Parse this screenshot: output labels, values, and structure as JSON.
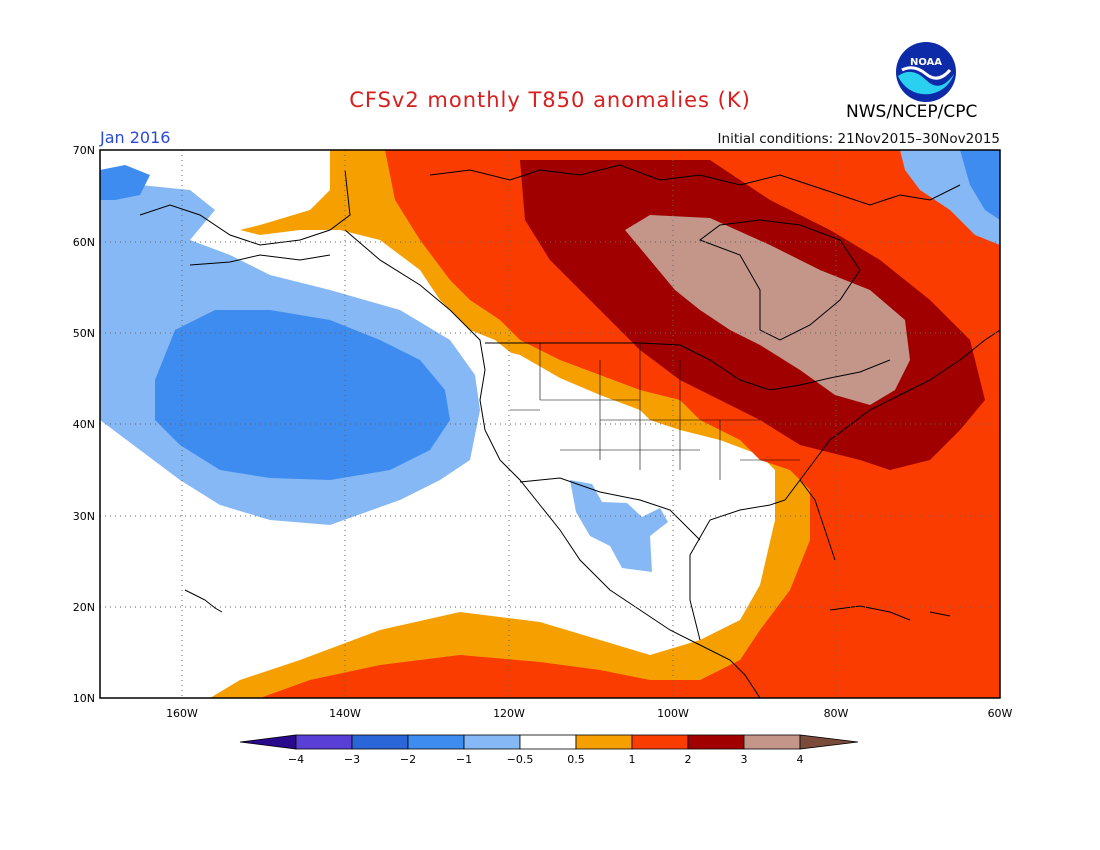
{
  "title": "CFSv2 monthly T850 anomalies (K)",
  "organization": "NWS/NCEP/CPC",
  "logo_text": "NOAA",
  "valid_month": "Jan 2016",
  "initial_conditions": "Initial conditions: 21Nov2015–30Nov2015",
  "lat_labels": [
    "70N",
    "60N",
    "50N",
    "40N",
    "30N",
    "20N",
    "10N"
  ],
  "lon_labels": [
    "160W",
    "140W",
    "120W",
    "100W",
    "80W",
    "60W"
  ],
  "colorbar": {
    "tick_labels": [
      "−4",
      "−3",
      "−2",
      "−1",
      "−0.5",
      "0.5",
      "1",
      "2",
      "3",
      "4"
    ],
    "colors": [
      "#2a0a8c",
      "#5a3fd6",
      "#2b66d9",
      "#3f8cf0",
      "#86b8f5",
      "#ffffff",
      "#f5a000",
      "#fb3c00",
      "#a00000",
      "#c4968a",
      "#7a4a3a"
    ]
  }
}
